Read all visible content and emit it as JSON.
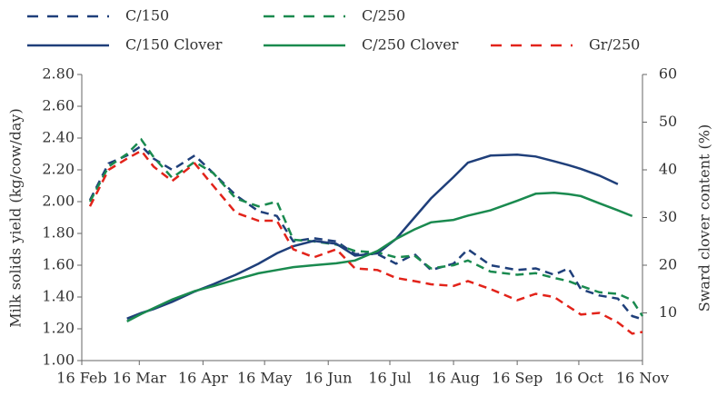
{
  "chart_data": {
    "type": "line",
    "y_label": "Milk solids yield (kg/cow/day)",
    "y2_label": "Sward clover content (%)",
    "x": [
      "20 Feb",
      "1 Mar",
      "10 Mar",
      "17 Mar",
      "23 Mar",
      "1 Apr",
      "12 Apr",
      "21 Apr",
      "2 May",
      "13 May",
      "22 May",
      "30 May",
      "9 Jun",
      "20 Jun",
      "29 Jun",
      "10 Jul",
      "19 Jul",
      "28 Jul",
      "5 Aug",
      "16 Aug",
      "23 Aug",
      "3 Sep",
      "16 Sep",
      "25 Sep",
      "4 Oct",
      "11 Oct",
      "17 Oct",
      "26 Oct",
      "4 Nov",
      "11 Nov",
      "16 Nov"
    ],
    "xlim": [
      "16 Feb",
      "16 Nov"
    ],
    "xticks": [
      "16 Feb",
      "16 Mar",
      "16 Apr",
      "16 May",
      "16 Jun",
      "16 Jul",
      "16 Aug",
      "16 Sep",
      "16 Oct",
      "16 Nov"
    ],
    "ylim": [
      1,
      2.8
    ],
    "yticks": [
      {
        "value": 1,
        "label": "1.00"
      },
      {
        "value": 1.2,
        "label": "1.20"
      },
      {
        "value": 1.4,
        "label": "1.40"
      },
      {
        "value": 1.6,
        "label": "1.60"
      },
      {
        "value": 1.8,
        "label": "1.80"
      },
      {
        "value": 2,
        "label": "2.00"
      },
      {
        "value": 2.2,
        "label": "2.20"
      },
      {
        "value": 2.4,
        "label": "2.40"
      },
      {
        "value": 2.6,
        "label": "2.60"
      },
      {
        "value": 2.8,
        "label": "2.80"
      }
    ],
    "y2lim": [
      0,
      60
    ],
    "y2ticks": [
      10,
      20,
      30,
      40,
      50,
      60
    ],
    "series": [
      {
        "name": "C/150",
        "color": "#1f3f7a",
        "linestyle": "dashed",
        "values": [
          2.01,
          2.24,
          2.29,
          2.35,
          2.27,
          2.2,
          2.29,
          2.18,
          2.04,
          1.94,
          1.91,
          1.75,
          1.77,
          1.75,
          1.67,
          1.67,
          1.61,
          1.67,
          1.57,
          1.61,
          1.7,
          1.6,
          1.57,
          1.58,
          1.54,
          1.58,
          1.45,
          1.41,
          1.39,
          1.28,
          1.26
        ]
      },
      {
        "name": "C/250",
        "color": "#1a8a4f",
        "linestyle": "dashed",
        "values": [
          2.0,
          2.22,
          2.3,
          2.39,
          2.28,
          2.15,
          2.25,
          2.18,
          2.02,
          1.97,
          2.0,
          1.76,
          1.75,
          1.73,
          1.69,
          1.68,
          1.65,
          1.66,
          1.58,
          1.6,
          1.63,
          1.56,
          1.54,
          1.55,
          1.52,
          1.5,
          1.47,
          1.43,
          1.42,
          1.38,
          1.28
        ]
      },
      {
        "name": "C/150 Clover",
        "color": "#1f3f7a",
        "linestyle": "solid",
        "axis": "y2",
        "values": [
          null,
          null,
          8.8,
          10,
          10.8,
          12.3,
          14.5,
          16,
          18,
          20.3,
          22.5,
          24,
          25.1,
          24.5,
          22,
          22.5,
          25.5,
          30,
          34,
          38.5,
          41.5,
          43,
          43.2,
          42.8,
          41.8,
          41,
          40.2,
          38.8,
          37,
          null,
          null
        ]
      },
      {
        "name": "C/250 Clover",
        "color": "#1a8a4f",
        "linestyle": "solid",
        "axis": "y2",
        "values": [
          null,
          null,
          8.2,
          9.8,
          11,
          12.8,
          14.6,
          15.6,
          17,
          18.3,
          19,
          19.6,
          20,
          20.4,
          21,
          23,
          25.5,
          27.5,
          29,
          29.5,
          30.4,
          31.5,
          33.5,
          35,
          35.2,
          34.9,
          34.5,
          33,
          31.5,
          30.3,
          null
        ]
      },
      {
        "name": "Gr/250",
        "color": "#e2231a",
        "linestyle": "dashed",
        "values": [
          1.97,
          2.2,
          2.27,
          2.32,
          2.22,
          2.13,
          2.24,
          2.1,
          1.93,
          1.88,
          1.88,
          1.7,
          1.65,
          1.7,
          1.58,
          1.57,
          1.52,
          1.5,
          1.48,
          1.47,
          1.5,
          1.45,
          1.38,
          1.42,
          1.4,
          1.34,
          1.29,
          1.3,
          1.24,
          1.17,
          1.18
        ]
      }
    ]
  }
}
